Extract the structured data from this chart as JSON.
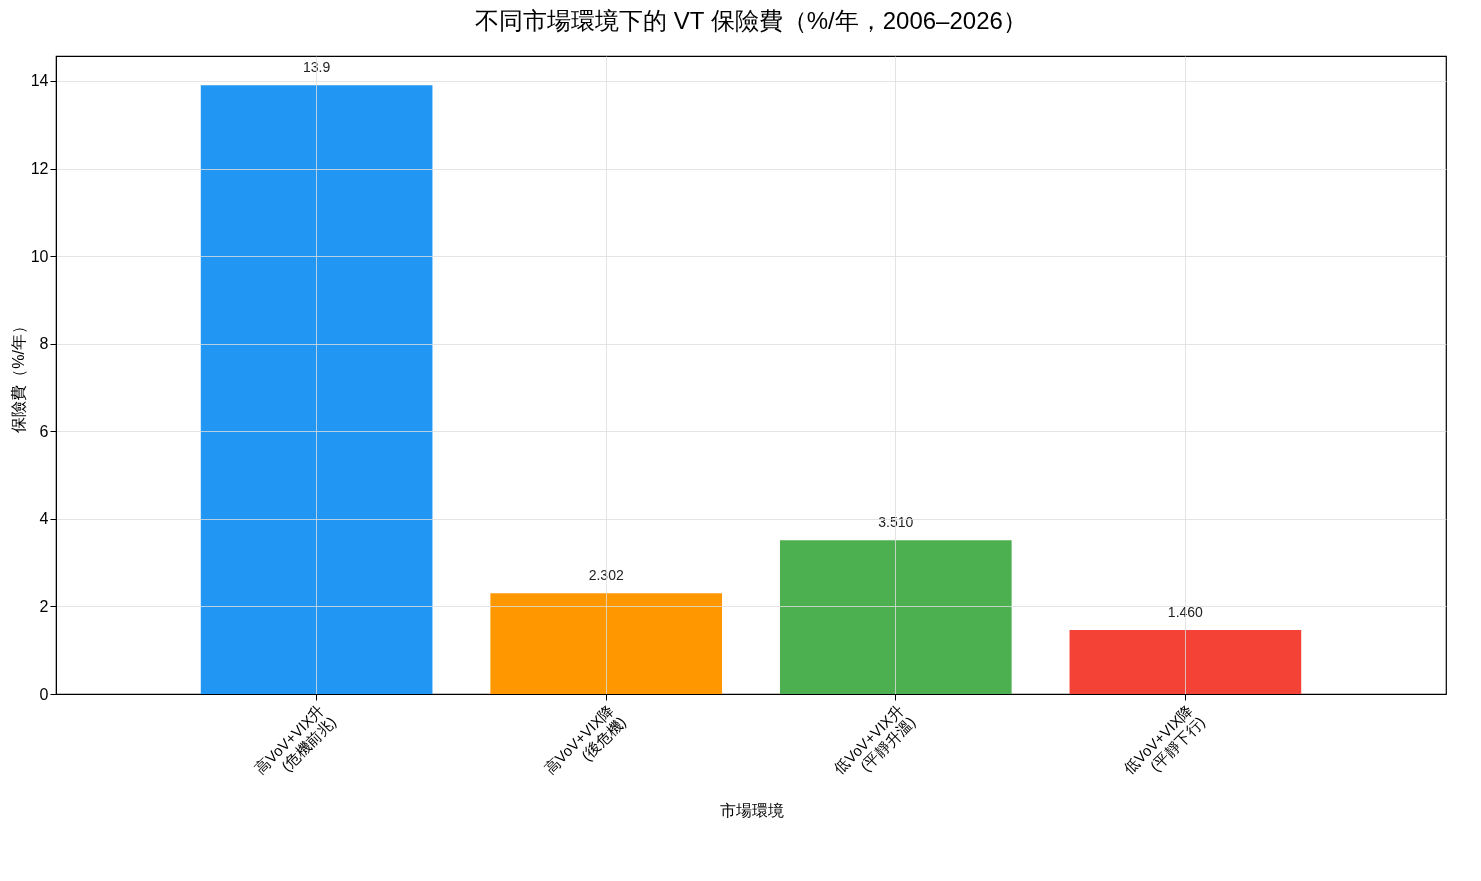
{
  "chart_data": {
    "type": "bar",
    "title": "不同市場環境下的 VT 保險費（%/年，2006–2026）",
    "xlabel": "市場環境",
    "ylabel": "保險費（%/年）",
    "categories": [
      "高VoV+VIX升\n(危機前兆)",
      "高VoV+VIX降\n(後危機)",
      "低VoV+VIX升\n(平靜升溫)",
      "低VoV+VIX降\n(平靜下行)"
    ],
    "values": [
      13.9,
      2.302,
      3.51,
      1.46
    ],
    "value_labels": [
      "13.9",
      "2.302",
      "3.510",
      "1.460"
    ],
    "colors": [
      "#2196f3",
      "#ff9800",
      "#4caf50",
      "#f44336"
    ],
    "ylim": [
      0,
      14.57
    ],
    "yticks": [
      0,
      2,
      4,
      6,
      8,
      10,
      12,
      14
    ],
    "grid": true
  }
}
